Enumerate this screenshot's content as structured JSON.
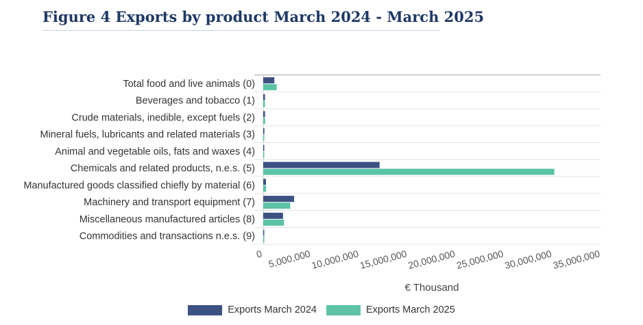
{
  "chart_data": {
    "type": "bar",
    "orientation": "horizontal",
    "title": "Figure 4 Exports by product March 2024 - March 2025",
    "xlabel": "€ Thousand",
    "xlim": [
      0,
      35000000
    ],
    "xticks": [
      0,
      5000000,
      10000000,
      15000000,
      20000000,
      25000000,
      30000000,
      35000000
    ],
    "xtick_labels": [
      "0",
      "5,000,000",
      "10,000,000",
      "15,000,000",
      "20,000,000",
      "25,000,000",
      "30,000,000",
      "35,000,000"
    ],
    "grid": true,
    "legend_position": "bottom",
    "categories": [
      "Total food and live animals (0)",
      "Beverages and tobacco (1)",
      "Crude materials, inedible, except fuels (2)",
      "Mineral fuels, lubricants and related materials (3)",
      "Animal and vegetable oils, fats and waxes (4)",
      "Chemicals and related products, n.e.s. (5)",
      "Manufactured goods classified chiefly by material (6)",
      "Machinery and transport equipment (7)",
      "Miscellaneous manufactured articles (8)",
      "Commodities and transactions n.e.s. (9)"
    ],
    "series": [
      {
        "name": "Exports March 2024",
        "color": "#3b5282",
        "values": [
          1150000,
          180000,
          180000,
          120000,
          60000,
          12050000,
          280000,
          3200000,
          2050000,
          60000
        ]
      },
      {
        "name": "Exports March 2025",
        "color": "#5cc3a6",
        "values": [
          1400000,
          180000,
          200000,
          100000,
          60000,
          30150000,
          300000,
          2800000,
          2150000,
          60000
        ]
      }
    ]
  }
}
